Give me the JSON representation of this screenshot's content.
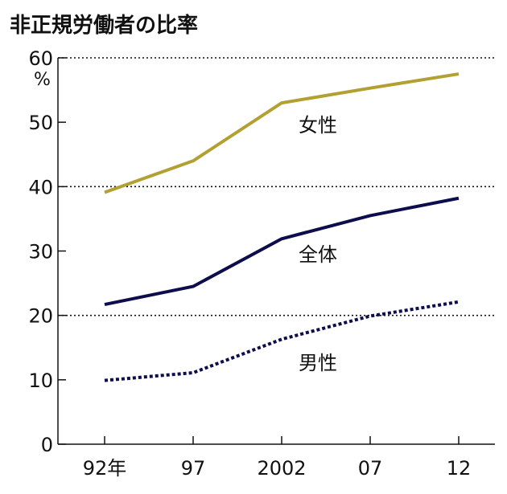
{
  "chart_data": {
    "type": "line",
    "title": "非正規労働者の比率",
    "y_unit": "%",
    "categories": [
      "92年",
      "97",
      "2002",
      "07",
      "12"
    ],
    "ylim": [
      0,
      60
    ],
    "yticks": [
      "0",
      "10",
      "20",
      "30",
      "40",
      "50",
      "60"
    ],
    "gridlines_y": [
      20,
      40,
      60
    ],
    "series": [
      {
        "name": "女性",
        "values": [
          39.1,
          44.0,
          53.0,
          55.3,
          57.5
        ],
        "color": "#b3a032",
        "style": "solid"
      },
      {
        "name": "全体",
        "values": [
          21.7,
          24.5,
          31.9,
          35.5,
          38.2
        ],
        "color": "#0d0d4d",
        "style": "solid"
      },
      {
        "name": "男性",
        "values": [
          9.9,
          11.1,
          16.3,
          19.9,
          22.1
        ],
        "color": "#0d0d4d",
        "style": "dashed"
      }
    ]
  }
}
